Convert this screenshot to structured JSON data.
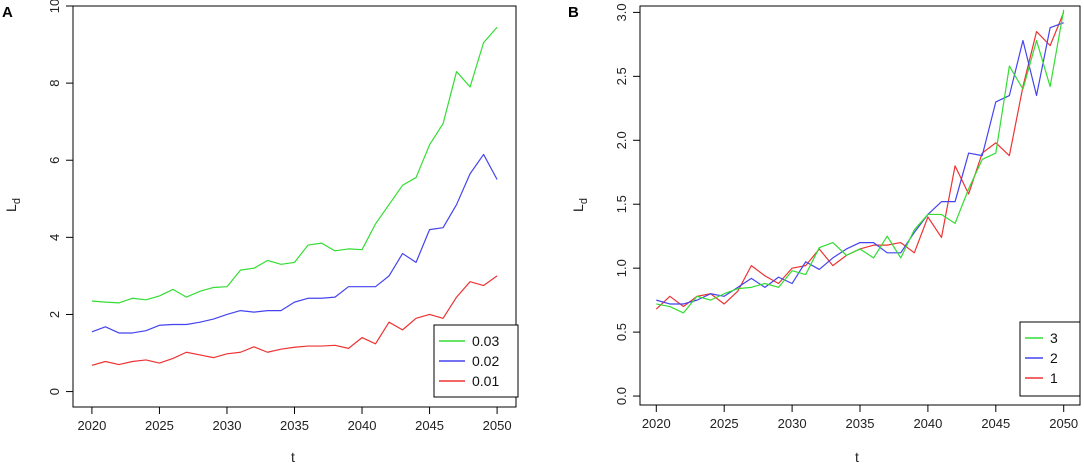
{
  "chart_data": [
    {
      "type": "line",
      "panel_label": "A",
      "xlabel": "t",
      "ylabel": "L",
      "ylabel_sub": "d",
      "x_ticks": [
        2020,
        2025,
        2030,
        2035,
        2040,
        2045,
        2050
      ],
      "x_tick_labels": [
        "2020",
        "2025",
        "2030",
        "2035",
        "2040",
        "2045",
        "2050"
      ],
      "y_ticks": [
        0,
        2,
        4,
        6,
        8,
        10
      ],
      "y_tick_labels": [
        "0",
        "2",
        "4",
        "6",
        "8",
        "10"
      ],
      "xlim": [
        2018.6,
        2051.4
      ],
      "ylim": [
        -0.4,
        10.0
      ],
      "legend_position": "bottom-right",
      "x": [
        2020,
        2021,
        2022,
        2023,
        2024,
        2025,
        2026,
        2027,
        2028,
        2029,
        2030,
        2031,
        2032,
        2033,
        2034,
        2035,
        2036,
        2037,
        2038,
        2039,
        2040,
        2041,
        2042,
        2043,
        2044,
        2045,
        2046,
        2047,
        2048,
        2049,
        2050
      ],
      "series": [
        {
          "name": "0.03",
          "color": "#33dd33",
          "values": [
            2.35,
            2.32,
            2.3,
            2.42,
            2.38,
            2.48,
            2.65,
            2.45,
            2.6,
            2.7,
            2.72,
            3.15,
            3.2,
            3.4,
            3.3,
            3.35,
            3.8,
            3.85,
            3.65,
            3.7,
            3.68,
            4.35,
            4.85,
            5.35,
            5.55,
            6.4,
            6.95,
            8.3,
            7.9,
            9.05,
            9.45
          ]
        },
        {
          "name": "0.02",
          "color": "#4444ee",
          "values": [
            1.55,
            1.68,
            1.52,
            1.52,
            1.58,
            1.72,
            1.74,
            1.74,
            1.8,
            1.88,
            2.0,
            2.1,
            2.06,
            2.1,
            2.1,
            2.32,
            2.42,
            2.42,
            2.45,
            2.72,
            2.72,
            2.72,
            3.0,
            3.58,
            3.35,
            4.2,
            4.25,
            4.85,
            5.65,
            6.15,
            5.5
          ]
        },
        {
          "name": "0.01",
          "color": "#ee3333",
          "values": [
            0.68,
            0.78,
            0.7,
            0.78,
            0.82,
            0.74,
            0.86,
            1.02,
            0.95,
            0.88,
            0.98,
            1.02,
            1.16,
            1.02,
            1.1,
            1.15,
            1.18,
            1.18,
            1.2,
            1.12,
            1.4,
            1.24,
            1.8,
            1.6,
            1.9,
            2.0,
            1.9,
            2.45,
            2.85,
            2.75,
            3.0
          ]
        }
      ]
    },
    {
      "type": "line",
      "panel_label": "B",
      "xlabel": "t",
      "ylabel": "L",
      "ylabel_sub": "d",
      "x_ticks": [
        2020,
        2025,
        2030,
        2035,
        2040,
        2045,
        2050
      ],
      "x_tick_labels": [
        "2020",
        "2025",
        "2030",
        "2035",
        "2040",
        "2045",
        "2050"
      ],
      "y_ticks": [
        0.0,
        0.5,
        1.0,
        1.5,
        2.0,
        2.5,
        3.0
      ],
      "y_tick_labels": [
        "0.0",
        "0.5",
        "1.0",
        "1.5",
        "2.0",
        "2.5",
        "3.0"
      ],
      "xlim": [
        2018.8,
        2051.2
      ],
      "ylim": [
        -0.07,
        3.05
      ],
      "legend_position": "bottom-right",
      "x": [
        2020,
        2021,
        2022,
        2023,
        2024,
        2025,
        2026,
        2027,
        2028,
        2029,
        2030,
        2031,
        2032,
        2033,
        2034,
        2035,
        2036,
        2037,
        2038,
        2039,
        2040,
        2041,
        2042,
        2043,
        2044,
        2045,
        2046,
        2047,
        2048,
        2049,
        2050
      ],
      "series": [
        {
          "name": "3",
          "color": "#33dd33",
          "values": [
            0.72,
            0.7,
            0.65,
            0.78,
            0.75,
            0.8,
            0.84,
            0.85,
            0.88,
            0.85,
            0.98,
            0.95,
            1.16,
            1.2,
            1.1,
            1.15,
            1.08,
            1.25,
            1.08,
            1.3,
            1.42,
            1.42,
            1.35,
            1.62,
            1.85,
            1.9,
            2.58,
            2.4,
            2.78,
            2.42,
            3.02
          ]
        },
        {
          "name": "2",
          "color": "#4444ee",
          "values": [
            0.75,
            0.72,
            0.72,
            0.75,
            0.8,
            0.78,
            0.85,
            0.92,
            0.85,
            0.93,
            0.88,
            1.05,
            0.99,
            1.08,
            1.15,
            1.2,
            1.2,
            1.12,
            1.12,
            1.28,
            1.42,
            1.52,
            1.52,
            1.9,
            1.88,
            2.3,
            2.35,
            2.78,
            2.35,
            2.88,
            2.92
          ]
        },
        {
          "name": "1",
          "color": "#ee3333",
          "values": [
            0.68,
            0.78,
            0.7,
            0.78,
            0.8,
            0.72,
            0.82,
            1.02,
            0.94,
            0.88,
            1.0,
            1.02,
            1.15,
            1.02,
            1.1,
            1.15,
            1.18,
            1.18,
            1.2,
            1.12,
            1.4,
            1.24,
            1.8,
            1.58,
            1.9,
            1.98,
            1.88,
            2.42,
            2.85,
            2.74,
            3.0
          ]
        }
      ]
    }
  ]
}
